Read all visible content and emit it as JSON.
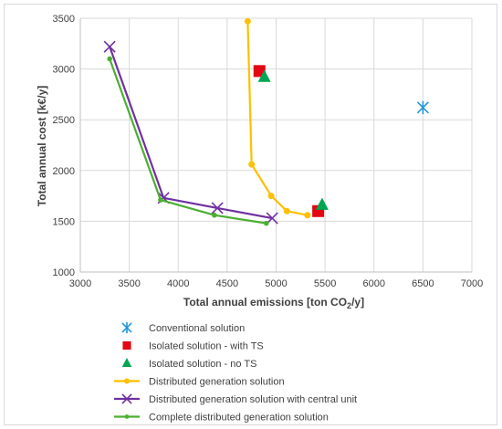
{
  "chart_data": {
    "type": "scatter",
    "xlabel_main": "Total annual emissions [ton CO",
    "xlabel_sub": "2",
    "xlabel_end": "/y]",
    "ylabel": "Total annual cost [k€/y]",
    "xlim": [
      3000,
      7000
    ],
    "ylim": [
      1000,
      3500
    ],
    "xticks": [
      3000,
      3500,
      4000,
      4500,
      5000,
      5500,
      6000,
      6500,
      7000
    ],
    "yticks": [
      1000,
      1500,
      2000,
      2500,
      3000,
      3500
    ],
    "grid": true,
    "legend_position": "bottom",
    "series": [
      {
        "name": "Conventional solution",
        "marker": "asterisk",
        "line": false,
        "color": "#2196d6",
        "points": [
          [
            6500,
            2620
          ]
        ]
      },
      {
        "name": "Isolated solution - with TS",
        "marker": "square",
        "line": false,
        "color": "#e30613",
        "points": [
          [
            4830,
            2980
          ],
          [
            5430,
            1600
          ]
        ]
      },
      {
        "name": "Isolated solution - no TS",
        "marker": "triangle",
        "line": false,
        "color": "#00a651",
        "points": [
          [
            4880,
            2920
          ],
          [
            5470,
            1660
          ]
        ]
      },
      {
        "name": "Distributed generation solution",
        "marker": "circle",
        "line": true,
        "color": "#ffc000",
        "points": [
          [
            4710,
            3470
          ],
          [
            4750,
            2060
          ],
          [
            4950,
            1750
          ],
          [
            5110,
            1600
          ],
          [
            5320,
            1560
          ]
        ]
      },
      {
        "name": "Distributed generation solution with central unit",
        "marker": "x",
        "line": true,
        "color": "#7030a0",
        "points": [
          [
            3300,
            3220
          ],
          [
            3850,
            1730
          ],
          [
            4400,
            1630
          ],
          [
            4960,
            1530
          ]
        ]
      },
      {
        "name": "Complete distributed generation solution",
        "marker": "dot",
        "line": true,
        "color": "#4caf32",
        "points": [
          [
            3300,
            3100
          ],
          [
            3820,
            1710
          ],
          [
            4370,
            1560
          ],
          [
            4900,
            1480
          ]
        ]
      }
    ]
  }
}
